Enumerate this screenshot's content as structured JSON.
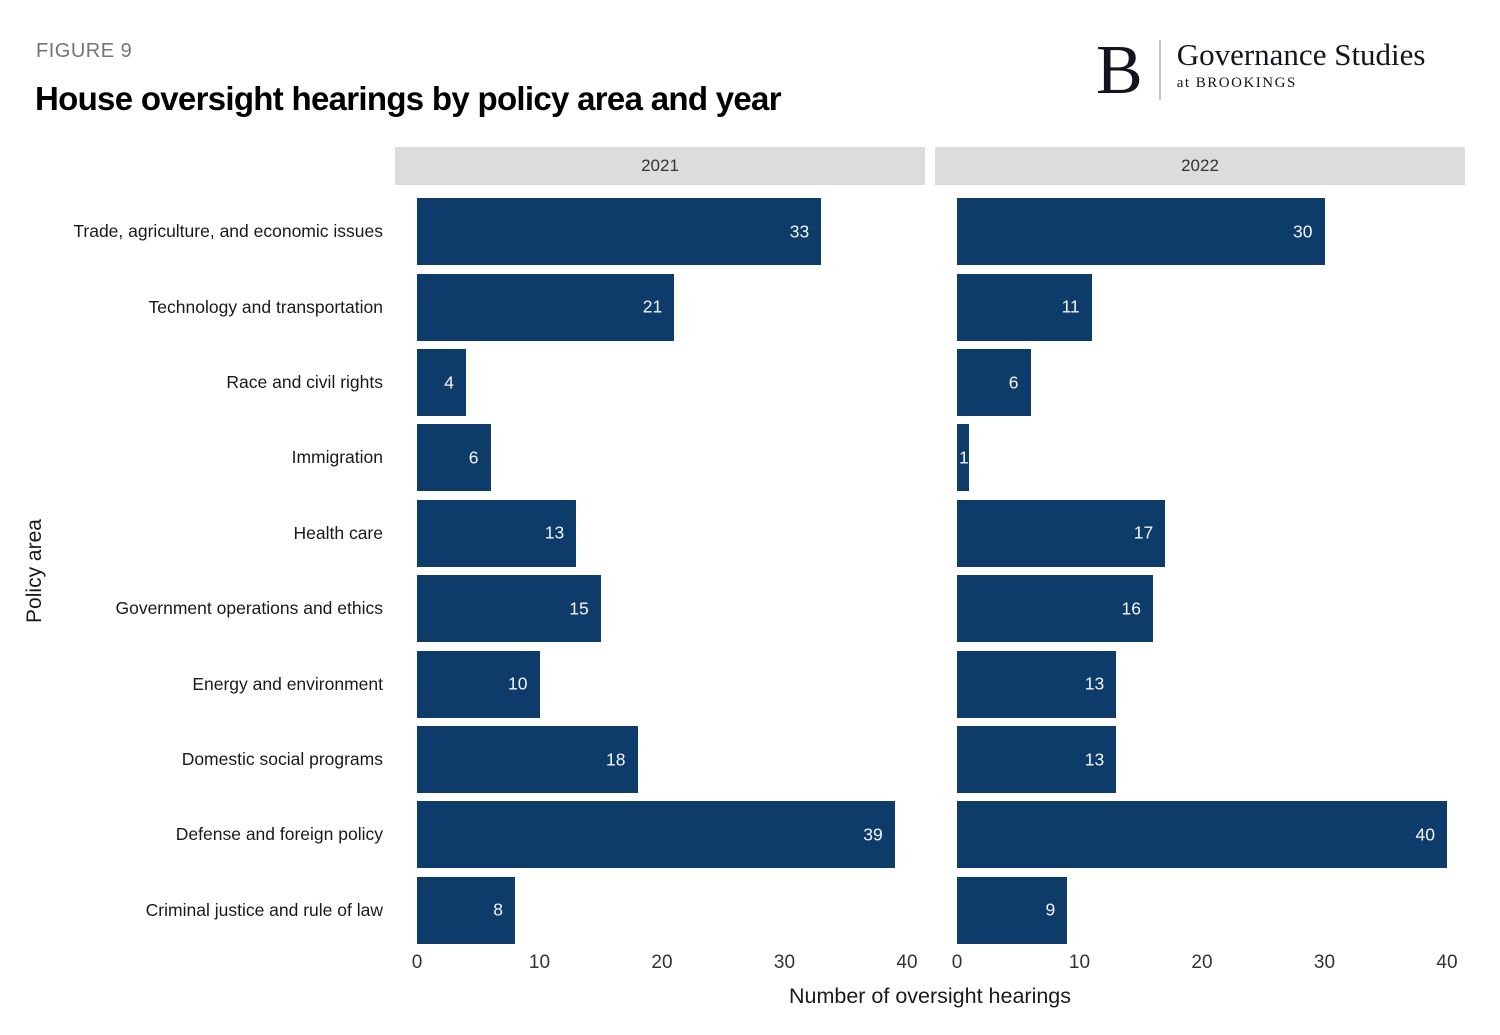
{
  "figure_label": "FIGURE 9",
  "title": "House oversight hearings by policy area and year",
  "logo": {
    "letter": "B",
    "name": "Governance Studies",
    "sub": "at BROOKINGS"
  },
  "chart_data": {
    "type": "bar",
    "orientation": "horizontal",
    "title": "House oversight hearings by policy area and year",
    "xlabel": "Number of oversight hearings",
    "ylabel": "Policy area",
    "xlim": [
      0,
      40
    ],
    "xticks": [
      0,
      10,
      20,
      30,
      40
    ],
    "grid": false,
    "facet_headers": [
      "2021",
      "2022"
    ],
    "bar_color": "#0d3c6b",
    "panel_header_bg": "#dcdcdc",
    "value_label_color": "#f5f5f5",
    "categories": [
      "Trade, agriculture, and economic issues",
      "Technology and transportation",
      "Race and civil rights",
      "Immigration",
      "Health care",
      "Government operations and ethics",
      "Energy and environment",
      "Domestic social programs",
      "Defense and foreign policy",
      "Criminal justice and rule of law"
    ],
    "series": [
      {
        "name": "2021",
        "values": [
          33,
          21,
          4,
          6,
          13,
          15,
          10,
          18,
          39,
          8
        ]
      },
      {
        "name": "2022",
        "values": [
          30,
          11,
          6,
          1,
          17,
          16,
          13,
          13,
          40,
          9
        ]
      }
    ]
  }
}
